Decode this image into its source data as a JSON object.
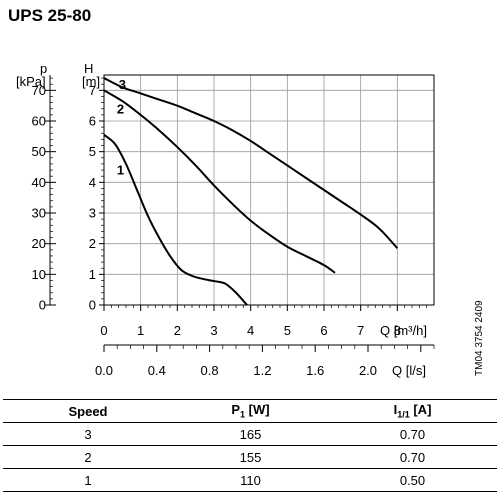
{
  "title": "UPS 25-80",
  "drawing_code": "TM04 3754 2409",
  "chart_data": {
    "type": "line",
    "title": "UPS 25-80",
    "y_axes": [
      {
        "label": "p",
        "unit": "[kPa]",
        "range": [
          0,
          75
        ],
        "ticks": [
          "0",
          "10",
          "20",
          "30",
          "40",
          "50",
          "60",
          "70"
        ]
      },
      {
        "label": "H",
        "unit": "[m]",
        "range": [
          0,
          7.5
        ],
        "ticks": [
          "0",
          "1",
          "2",
          "3",
          "4",
          "5",
          "6",
          "7"
        ]
      }
    ],
    "x_axes": [
      {
        "label": "Q [m³/h]",
        "range": [
          0,
          9
        ],
        "ticks": [
          "0",
          "1",
          "2",
          "3",
          "4",
          "5",
          "6",
          "7",
          "8"
        ]
      },
      {
        "label": "Q [l/s]",
        "range": [
          0,
          2.5
        ],
        "ticks": [
          "0.0",
          "0.4",
          "0.8",
          "1.2",
          "1.6",
          "2.0"
        ]
      }
    ],
    "grid": true,
    "series": [
      {
        "name": "1",
        "x": [
          0,
          0.3,
          0.6,
          0.9,
          1.2,
          1.5,
          1.8,
          2.1,
          2.4,
          2.7,
          3.0,
          3.3,
          3.6,
          3.9
        ],
        "y": [
          5.55,
          5.25,
          4.6,
          3.75,
          2.9,
          2.2,
          1.6,
          1.15,
          0.95,
          0.85,
          0.78,
          0.7,
          0.4,
          0.0
        ]
      },
      {
        "name": "2",
        "x": [
          0,
          0.5,
          1.0,
          1.5,
          2.0,
          2.5,
          3.0,
          3.5,
          4.0,
          4.5,
          5.0,
          5.5,
          6.0,
          6.3
        ],
        "y": [
          7.0,
          6.65,
          6.2,
          5.7,
          5.15,
          4.55,
          3.9,
          3.3,
          2.75,
          2.3,
          1.9,
          1.6,
          1.3,
          1.05
        ]
      },
      {
        "name": "3",
        "x": [
          0,
          0.5,
          1.0,
          1.5,
          2.0,
          2.5,
          3.0,
          3.5,
          4.0,
          4.5,
          5.0,
          5.5,
          6.0,
          6.5,
          7.0,
          7.5,
          8.0
        ],
        "y": [
          7.4,
          7.1,
          6.9,
          6.7,
          6.5,
          6.25,
          6.0,
          5.7,
          5.35,
          4.95,
          4.55,
          4.15,
          3.75,
          3.35,
          2.95,
          2.5,
          1.85
        ]
      }
    ]
  },
  "table": {
    "headers": {
      "speed": "Speed",
      "p1_main": "P",
      "p1_sub": "1",
      "p1_unit": " [W]",
      "i_main": "I",
      "i_sub": "1/1",
      "i_unit": " [A]"
    },
    "rows": [
      {
        "speed": "3",
        "p1": "165",
        "i": "0.70"
      },
      {
        "speed": "2",
        "p1": "155",
        "i": "0.70"
      },
      {
        "speed": "1",
        "p1": "110",
        "i": "0.50"
      }
    ]
  }
}
